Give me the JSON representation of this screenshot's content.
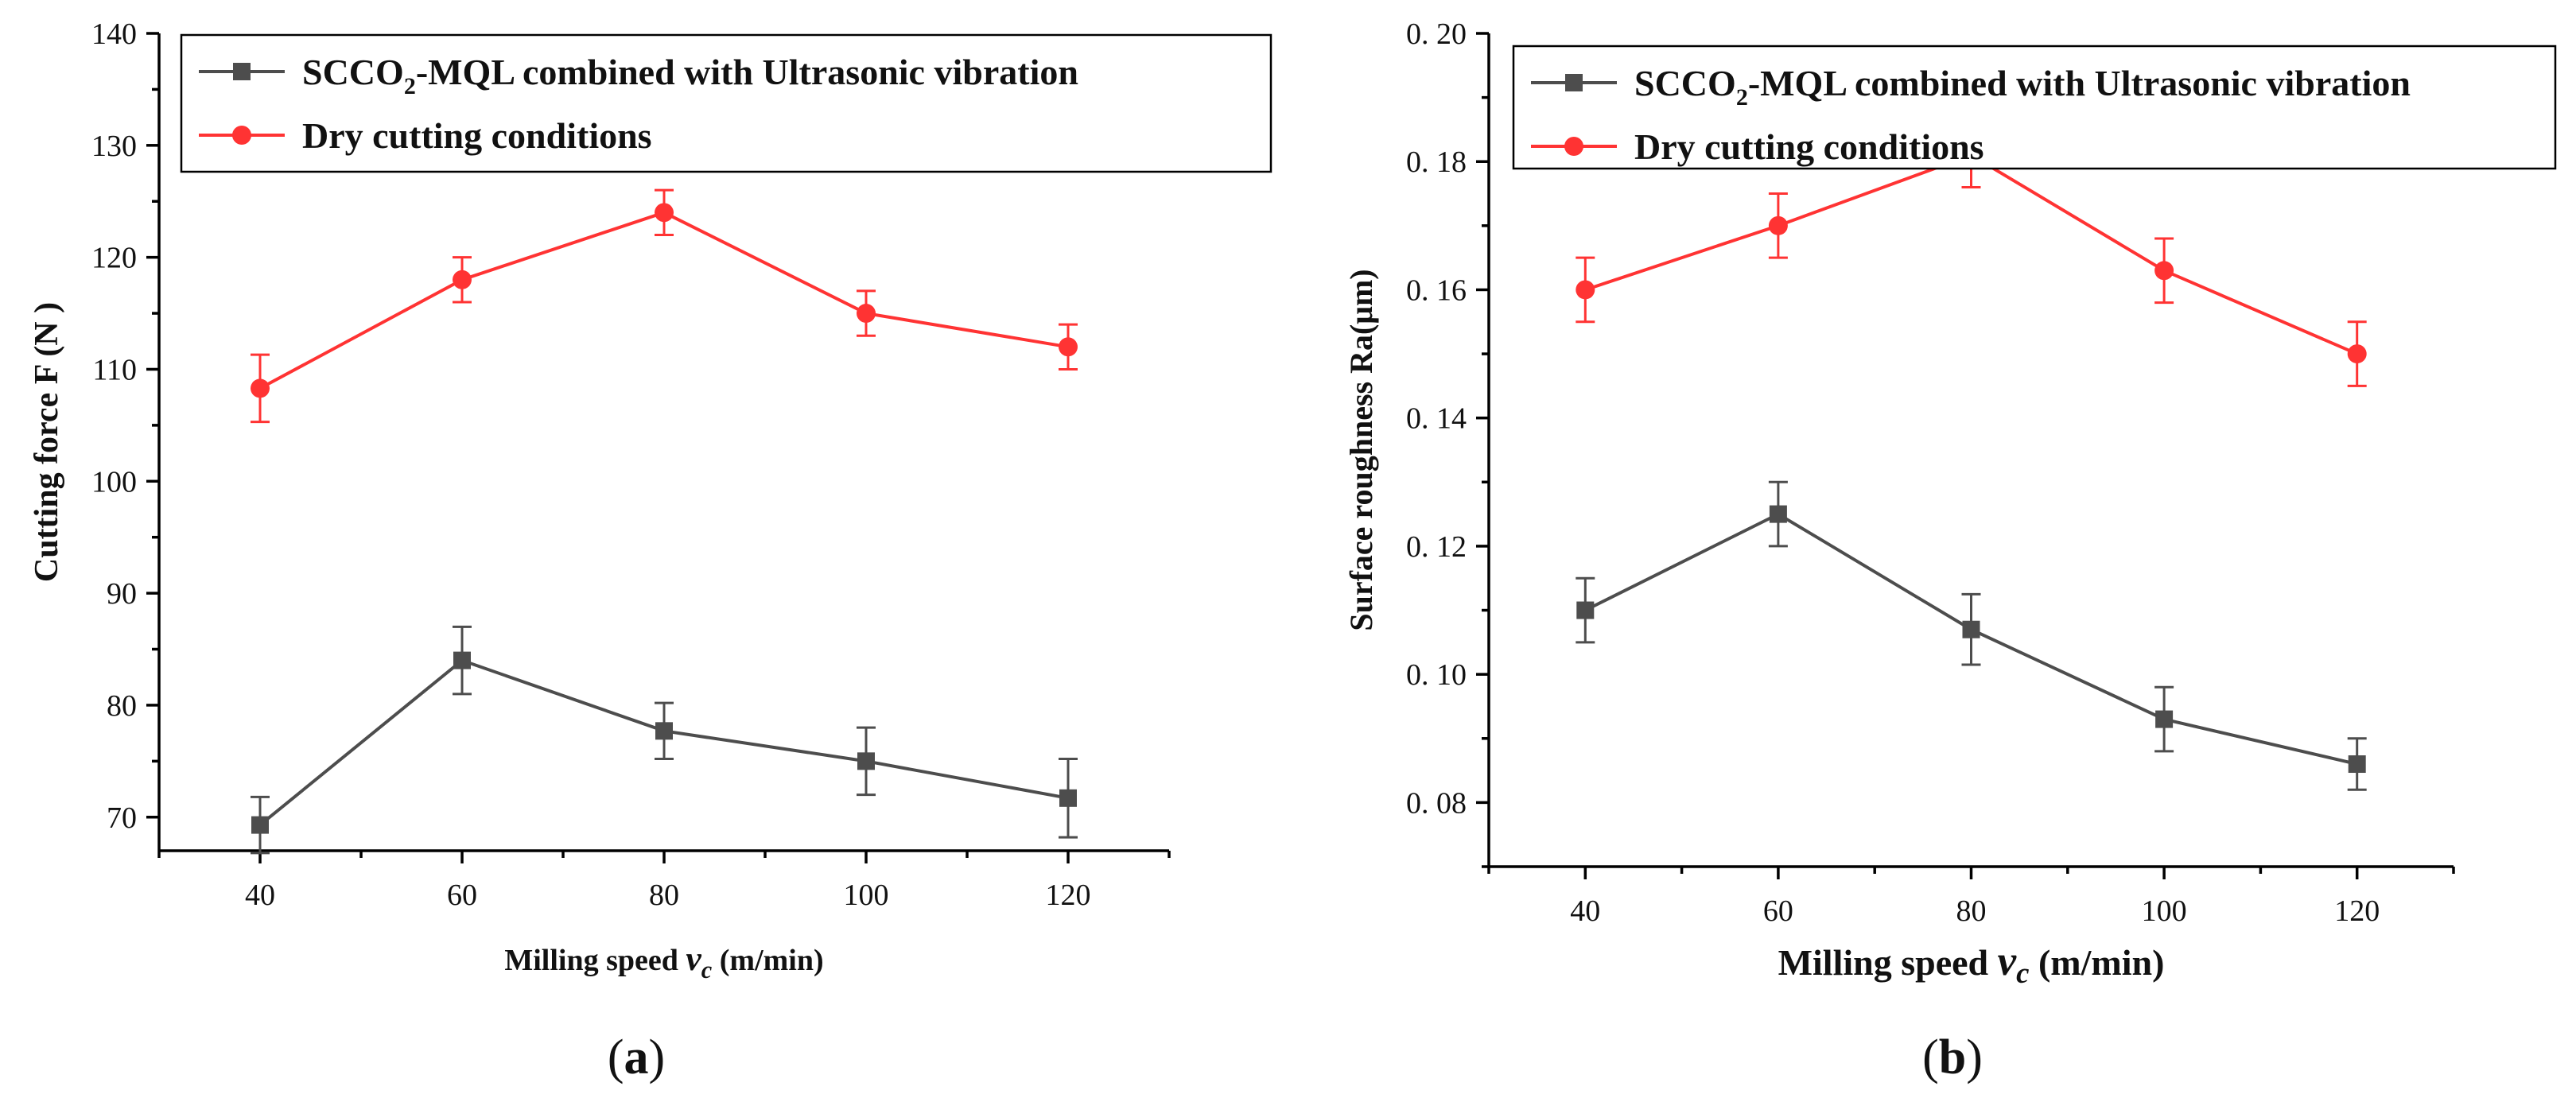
{
  "colors": {
    "mql": "#4d4d4d",
    "dry": "#ff3333",
    "axis": "#000000"
  },
  "chart_data": [
    {
      "id": "a",
      "type": "line",
      "panel_label": "a",
      "xlabel_prefix": "Milling speed ",
      "xlabel_var": "v",
      "xlabel_sub": "c",
      "xlabel_suffix": " (m/min)",
      "ylabel": "Cutting force  F (N )",
      "x": [
        40,
        60,
        80,
        100,
        120
      ],
      "xticks": [
        "40",
        "60",
        "80",
        "100",
        "120"
      ],
      "xlim": [
        30,
        130
      ],
      "ylim": [
        67,
        140
      ],
      "yticks": [
        70,
        80,
        90,
        100,
        110,
        120,
        130,
        140
      ],
      "ytick_labels": [
        "70",
        "80",
        "90",
        "100",
        "110",
        "120",
        "130",
        "140"
      ],
      "series": [
        {
          "key": "mql",
          "marker": "square",
          "legend_prefix": "SCCO",
          "legend_sub": "2",
          "legend_suffix": "-MQL combined with Ultrasonic vibration",
          "values": [
            69.3,
            84.0,
            77.7,
            75.0,
            71.7
          ],
          "errors": [
            2.5,
            3.0,
            2.5,
            3.0,
            3.5
          ]
        },
        {
          "key": "dry",
          "marker": "circle",
          "legend_prefix": "Dry cutting conditions",
          "legend_sub": "",
          "legend_suffix": "",
          "values": [
            108.3,
            118.0,
            124.0,
            115.0,
            112.0
          ],
          "errors": [
            3.0,
            2.0,
            2.0,
            2.0,
            2.0
          ]
        }
      ]
    },
    {
      "id": "b",
      "type": "line",
      "panel_label": "b",
      "xlabel_prefix": "Milling speed ",
      "xlabel_var": "v",
      "xlabel_sub": "c",
      "xlabel_suffix": " (m/min)",
      "ylabel": "Surface roughness Ra(μm)",
      "x": [
        40,
        60,
        80,
        100,
        120
      ],
      "xticks": [
        "40",
        "60",
        "80",
        "100",
        "120"
      ],
      "xlim": [
        30,
        130
      ],
      "ylim": [
        0.07,
        0.2
      ],
      "yticks": [
        0.08,
        0.1,
        0.12,
        0.14,
        0.16,
        0.18,
        0.2
      ],
      "ytick_labels": [
        "0. 08",
        "0. 10",
        "0. 12",
        "0. 14",
        "0. 16",
        "0. 18",
        "0. 20"
      ],
      "series": [
        {
          "key": "mql",
          "marker": "square",
          "legend_prefix": "SCCO",
          "legend_sub": "2",
          "legend_suffix": "-MQL combined with Ultrasonic vibration",
          "values": [
            0.11,
            0.125,
            0.107,
            0.093,
            0.086
          ],
          "errors": [
            0.005,
            0.005,
            0.0055,
            0.005,
            0.004
          ]
        },
        {
          "key": "dry",
          "marker": "circle",
          "legend_prefix": "Dry cutting conditions",
          "legend_sub": "",
          "legend_suffix": "",
          "values": [
            0.16,
            0.17,
            0.181,
            0.163,
            0.15
          ],
          "errors": [
            0.005,
            0.005,
            0.005,
            0.005,
            0.005
          ]
        }
      ]
    }
  ]
}
